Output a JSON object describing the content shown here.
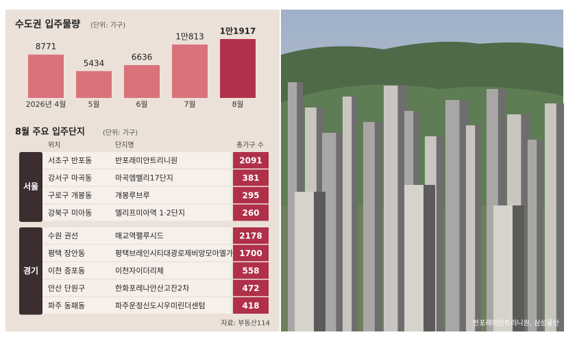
{
  "chart_data": {
    "type": "bar",
    "title": "수도권 입주물량",
    "subtitle": "(단위: 가구)",
    "categories": [
      "2026년 4월",
      "5월",
      "6월",
      "7월",
      "8월"
    ],
    "values": [
      8771,
      5434,
      6636,
      10813,
      11917
    ],
    "value_labels": [
      "8771",
      "5434",
      "6636",
      "1만813",
      "1만1917"
    ],
    "colors": [
      "#d9727b",
      "#d9727b",
      "#d9727b",
      "#d9727b",
      "#b3324b"
    ]
  },
  "table": {
    "title": "8월 주요 입주단지",
    "subtitle": "(단위: 가구)",
    "headers": [
      "위치",
      "단지명",
      "총가구 수"
    ],
    "groups": [
      {
        "name": "서울",
        "rows": [
          [
            "서초구 반포동",
            "반포래미안트리니원",
            2091
          ],
          [
            "강서구 마곡동",
            "마곡엠밸리17단지",
            381
          ],
          [
            "구로구 개봉동",
            "개봉루브루",
            295
          ],
          [
            "강북구 미아동",
            "엘리프미아역 1·2단지",
            260
          ]
        ]
      },
      {
        "name": "경기",
        "rows": [
          [
            "수원 권선",
            "매교역팰루시드",
            2178
          ],
          [
            "평택 장안동",
            "평택브레인시티대광로제비앙모아엘가",
            1700
          ],
          [
            "이천 증포동",
            "이천자이더리체",
            558
          ],
          [
            "안산 단원구",
            "한화포레나안산고잔2차",
            472
          ],
          [
            "파주 동패동",
            "파주운정신도시우미린더센텀",
            418
          ]
        ]
      }
    ],
    "source": "자료: 부동산114"
  },
  "photo": {
    "caption": "반포래미안트리니원, 삼성물산"
  }
}
